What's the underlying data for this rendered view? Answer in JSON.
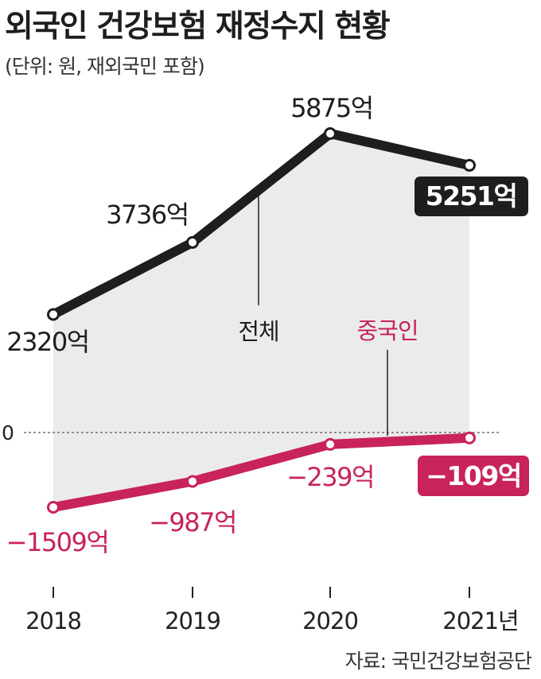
{
  "title": "외국인 건강보험 재정수지 현황",
  "subtitle": "(단위: 원, 재외국민 포함)",
  "source": "자료: 국민건강보험공단",
  "chart_data": {
    "type": "line",
    "categories": [
      "2018",
      "2019",
      "2020",
      "2021년"
    ],
    "zero_label": "0",
    "series": [
      {
        "name": "전체",
        "color": "#1e1e1e",
        "values": [
          2320,
          3736,
          5875,
          5251
        ],
        "labels": [
          "2320억",
          "3736억",
          "5875억",
          "5251억"
        ]
      },
      {
        "name": "중국인",
        "color": "#c8235a",
        "values": [
          -1509,
          -987,
          -239,
          -109
        ],
        "labels": [
          "−1509억",
          "−987억",
          "−239억",
          "−109억"
        ]
      }
    ],
    "colors": {
      "fill": "#ebebed",
      "axis": "#222222",
      "zero_line": "#555555"
    }
  }
}
